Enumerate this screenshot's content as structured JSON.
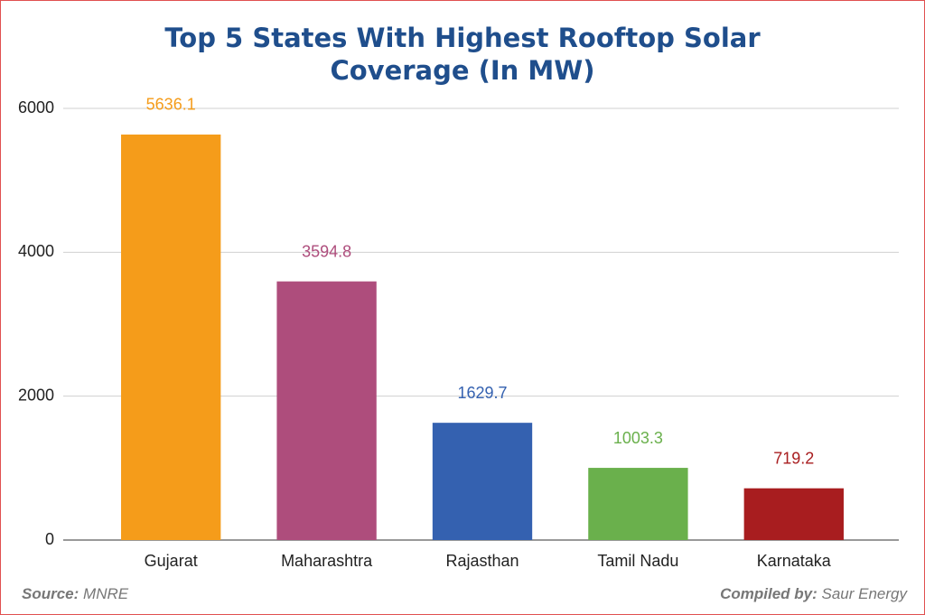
{
  "chart_data": {
    "type": "bar",
    "title": "Top 5 States With Highest Rooftop Solar Coverage (In MW)",
    "categories": [
      "Gujarat",
      "Maharashtra",
      "Rajasthan",
      "Tamil Nadu",
      "Karnataka"
    ],
    "values": [
      5636.1,
      3594.8,
      1629.7,
      1003.3,
      719.2
    ],
    "colors": [
      "#f59c1a",
      "#ae4d7c",
      "#3461b0",
      "#6ab04c",
      "#a81d1f"
    ],
    "ylim": [
      0,
      6000
    ],
    "yticks": [
      0,
      2000,
      4000,
      6000
    ],
    "grid": true
  },
  "footer": {
    "source_label": "Source:",
    "source": "MNRE",
    "compiled_label": "Compiled by:",
    "compiled": "Saur Energy"
  }
}
